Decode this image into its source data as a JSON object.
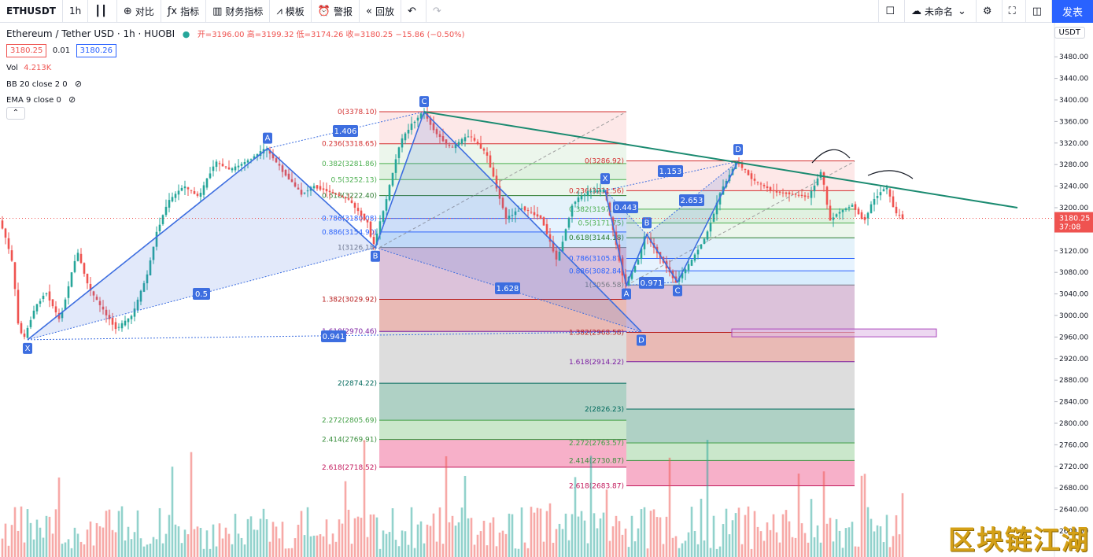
{
  "toolbar": {
    "symbol": "ETHUSDT",
    "interval": "1h",
    "compare": "对比",
    "indicators": "指标",
    "financials": "财务指标",
    "templates": "模板",
    "alert": "警报",
    "replay": "回放",
    "layout_name": "未命名",
    "publish": "发表"
  },
  "legend": {
    "title": "Ethereum / Tether USD · 1h · HUOBI",
    "ohlc": "开=3196.00 高=3199.32 低=3174.26 收=3180.25 −15.86 (−0.50%)",
    "bid": "3180.25",
    "spread": "0.01",
    "ask": "3180.26",
    "vol_label": "Vol",
    "vol_value": "4.213K",
    "bb": "BB 20 close 2 0",
    "ema": "EMA 9 close 0",
    "currency": "USDT"
  },
  "colors": {
    "up": "#26a69a",
    "down": "#ef5350",
    "pattern": "#3d6ee0",
    "trendline": "#1a8a70",
    "accent": "#2962ff"
  },
  "watermark": "区块链江湖",
  "chart_data": {
    "type": "candlestick",
    "price_axis": {
      "min": 2600,
      "max": 3500,
      "step": 40,
      "current_price": "3180.25",
      "countdown": "37:08"
    },
    "fib_left": {
      "levels": [
        {
          "label": "0(3378.10)",
          "price": 3378.1
        },
        {
          "label": "0.236(3318.65)",
          "price": 3318.65
        },
        {
          "label": "0.382(3281.86)",
          "price": 3281.86
        },
        {
          "label": "0.5(3252.13)",
          "price": 3252.13
        },
        {
          "label": "0.618(3222.40)",
          "price": 3222.4
        },
        {
          "label": "0.786(3180.08)",
          "price": 3180.08
        },
        {
          "label": "0.886(3154.90)",
          "price": 3154.9
        },
        {
          "label": "1(3126.18)",
          "price": 3126.18
        },
        {
          "label": "1.382(3029.92)",
          "price": 3029.92
        },
        {
          "label": "1.618(2970.46)",
          "price": 2970.46
        },
        {
          "label": "2(2874.22)",
          "price": 2874.22
        },
        {
          "label": "2.272(2805.69)",
          "price": 2805.69
        },
        {
          "label": "2.414(2769.91)",
          "price": 2769.91
        },
        {
          "label": "2.618(2718.52)",
          "price": 2718.52
        }
      ]
    },
    "fib_right": {
      "levels": [
        {
          "label": "0(3286.92)",
          "price": 3286.92
        },
        {
          "label": "0.236(3231.56)",
          "price": 3231.56
        },
        {
          "label": "0.382(3197.31)",
          "price": 3197.31
        },
        {
          "label": "0.5(3171.75)",
          "price": 3171.75
        },
        {
          "label": "0.618(3144.18)",
          "price": 3144.18
        },
        {
          "label": "0.786(3105.87)",
          "price": 3105.87
        },
        {
          "label": "0.886(3082.84)",
          "price": 3082.84
        },
        {
          "label": "1(3056.58)",
          "price": 3056.58
        },
        {
          "label": "1.382(2968.58)",
          "price": 2968.58
        },
        {
          "label": "1.618(2914.22)",
          "price": 2914.22
        },
        {
          "label": "2(2826.23)",
          "price": 2826.23
        },
        {
          "label": "2.272(2763.57)",
          "price": 2763.57
        },
        {
          "label": "2.414(2730.87)",
          "price": 2730.87
        },
        {
          "label": "2.618(2683.87)",
          "price": 2683.87
        }
      ]
    },
    "harmonic_left": {
      "points": [
        {
          "name": "X",
          "price": 2955
        },
        {
          "name": "A",
          "price": 3310
        },
        {
          "name": "B",
          "price": 3126
        },
        {
          "name": "C",
          "price": 3378
        },
        {
          "name": "D",
          "price": 2970
        }
      ],
      "ratios": [
        "0.5",
        "1.406",
        "1.628",
        "0.941"
      ]
    },
    "harmonic_right": {
      "points": [
        {
          "name": "X",
          "price": 3232
        },
        {
          "name": "A",
          "price": 3056
        },
        {
          "name": "B",
          "price": 3150
        },
        {
          "name": "C",
          "price": 3062
        },
        {
          "name": "D",
          "price": 3286
        }
      ],
      "ratios": [
        "0.443",
        "2.653",
        "1.153",
        "0.971"
      ]
    },
    "trendline": {
      "start_price": 3378,
      "end_price": 3200
    },
    "path": [
      [
        0,
        3180
      ],
      [
        8,
        3150
      ],
      [
        18,
        3095
      ],
      [
        25,
        2985
      ],
      [
        32,
        2955
      ],
      [
        45,
        3010
      ],
      [
        60,
        3045
      ],
      [
        78,
        2990
      ],
      [
        100,
        3120
      ],
      [
        115,
        3050
      ],
      [
        135,
        3005
      ],
      [
        150,
        2975
      ],
      [
        170,
        3000
      ],
      [
        190,
        3080
      ],
      [
        200,
        3150
      ],
      [
        215,
        3210
      ],
      [
        235,
        3240
      ],
      [
        255,
        3220
      ],
      [
        275,
        3285
      ],
      [
        295,
        3270
      ],
      [
        320,
        3290
      ],
      [
        340,
        3310
      ],
      [
        360,
        3270
      ],
      [
        385,
        3225
      ],
      [
        400,
        3240
      ],
      [
        420,
        3230
      ],
      [
        445,
        3215
      ],
      [
        470,
        3170
      ],
      [
        476,
        3126
      ],
      [
        492,
        3210
      ],
      [
        510,
        3320
      ],
      [
        525,
        3355
      ],
      [
        540,
        3378
      ],
      [
        555,
        3340
      ],
      [
        575,
        3310
      ],
      [
        598,
        3335
      ],
      [
        620,
        3300
      ],
      [
        645,
        3180
      ],
      [
        665,
        3200
      ],
      [
        690,
        3180
      ],
      [
        710,
        3100
      ],
      [
        730,
        3210
      ],
      [
        750,
        3230
      ],
      [
        770,
        3232
      ],
      [
        782,
        3150
      ],
      [
        796,
        3056
      ],
      [
        812,
        3100
      ],
      [
        822,
        3150
      ],
      [
        840,
        3110
      ],
      [
        861,
        3062
      ],
      [
        880,
        3100
      ],
      [
        900,
        3150
      ],
      [
        918,
        3230
      ],
      [
        938,
        3286
      ],
      [
        960,
        3250
      ],
      [
        985,
        3230
      ],
      [
        1010,
        3225
      ],
      [
        1030,
        3220
      ],
      [
        1046,
        3270
      ],
      [
        1056,
        3175
      ],
      [
        1066,
        3190
      ],
      [
        1085,
        3205
      ],
      [
        1100,
        3175
      ],
      [
        1112,
        3215
      ],
      [
        1128,
        3240
      ],
      [
        1140,
        3190
      ],
      [
        1150,
        3180
      ]
    ]
  }
}
